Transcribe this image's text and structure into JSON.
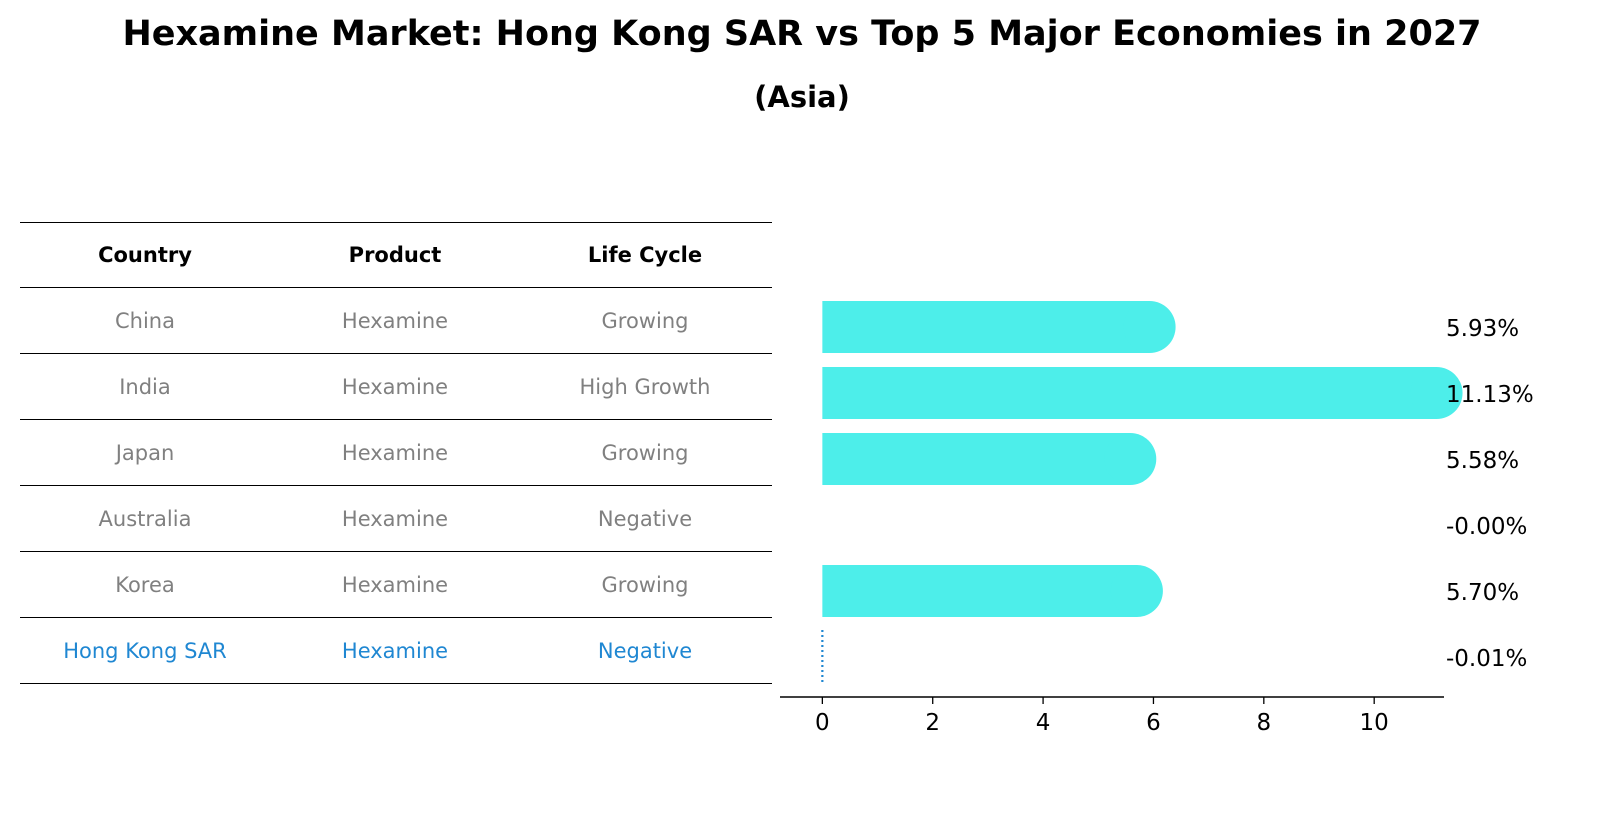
{
  "title": "Hexamine Market: Hong Kong SAR vs Top 5 Major Economies in 2027",
  "subtitle": "(Asia)",
  "table": {
    "headers": [
      "Country",
      "Product",
      "Life Cycle"
    ],
    "rows": [
      [
        "China",
        "Hexamine",
        "Growing"
      ],
      [
        "India",
        "Hexamine",
        "High Growth"
      ],
      [
        "Japan",
        "Hexamine",
        "Growing"
      ],
      [
        "Australia",
        "Hexamine",
        "Negative"
      ],
      [
        "Korea",
        "Hexamine",
        "Growing"
      ],
      [
        "Hong Kong SAR",
        "Hexamine",
        "Negative"
      ]
    ],
    "highlight_row": 5
  },
  "colors": {
    "bar": "#4deeea",
    "highlight": "#1f87d2",
    "muted_text": "#808080"
  },
  "chart_data": {
    "type": "bar",
    "orientation": "horizontal",
    "categories": [
      "China",
      "India",
      "Japan",
      "Australia",
      "Korea",
      "Hong Kong SAR"
    ],
    "values": [
      5.93,
      11.13,
      5.58,
      -0.0,
      5.7,
      -0.01
    ],
    "value_labels": [
      "5.93%",
      "11.13%",
      "5.58%",
      "-0.00%",
      "5.70%",
      "-0.01%"
    ],
    "xticks": [
      0,
      2,
      4,
      6,
      8,
      10
    ],
    "xlim": [
      -0.55,
      11.7
    ]
  }
}
